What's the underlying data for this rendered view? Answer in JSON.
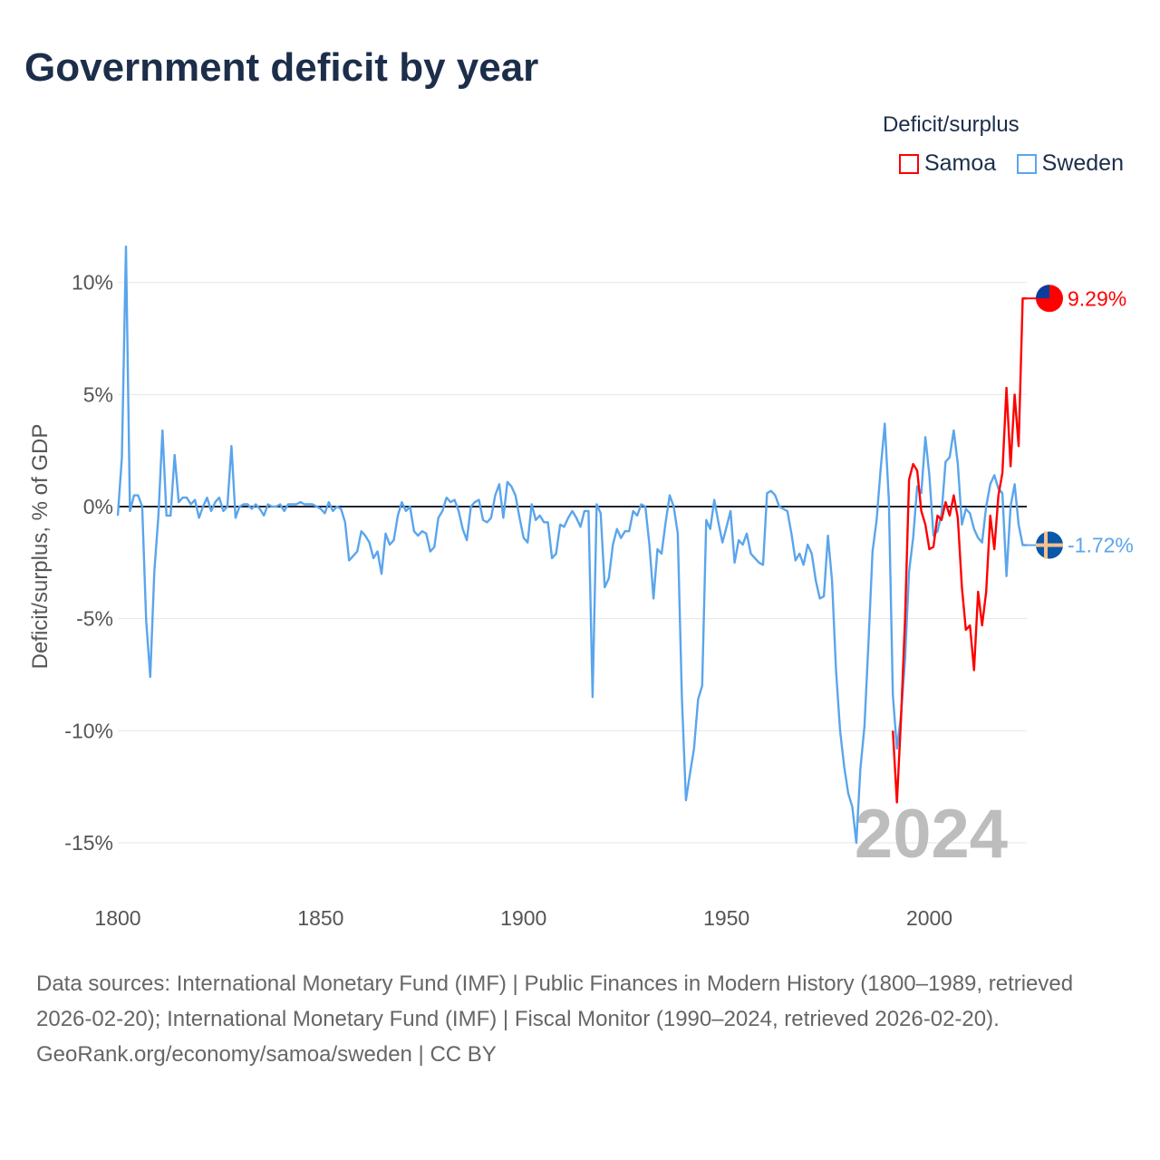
{
  "title": "Government deficit by year",
  "legend": {
    "title": "Deficit/surplus",
    "items": [
      {
        "name": "Samoa",
        "color": "#ff0000"
      },
      {
        "name": "Sweden",
        "color": "#5aa5ec"
      }
    ]
  },
  "footer": {
    "sources": "Data sources: International Monetary Fund (IMF) | Public Finances in Modern History (1800–1989, retrieved 2026-02-20); International Monetary Fund (IMF) | Fiscal Monitor (1990–2024, retrieved 2026-02-20).",
    "link": "GeoRank.org/economy/samoa/sweden | CC BY"
  },
  "chart_data": {
    "type": "line",
    "title": "Government deficit by year",
    "ylabel": "Deficit/surplus, % of GDP",
    "xlabel": "",
    "xlim": [
      1800,
      2024
    ],
    "ylim": [
      -16,
      12
    ],
    "xticks": [
      1800,
      1850,
      1900,
      1950,
      2000
    ],
    "yticks": [
      10,
      5,
      0,
      -5,
      -10,
      -15
    ],
    "ytick_labels": [
      "10%",
      "5%",
      "0%",
      "-5%",
      "-10%",
      "-15%"
    ],
    "year_watermark": "2024",
    "end_labels": {
      "Samoa": "9.29%",
      "Sweden": "-1.72%"
    },
    "series": [
      {
        "name": "Sweden",
        "color": "#5aa5ec",
        "points": [
          [
            1800,
            -0.4
          ],
          [
            1801,
            2.2
          ],
          [
            1802,
            11.6
          ],
          [
            1803,
            -0.2
          ],
          [
            1804,
            0.5
          ],
          [
            1805,
            0.5
          ],
          [
            1806,
            0
          ],
          [
            1807,
            -5.1
          ],
          [
            1808,
            -7.6
          ],
          [
            1809,
            -2.9
          ],
          [
            1810,
            -0.4
          ],
          [
            1811,
            3.4
          ],
          [
            1812,
            -0.4
          ],
          [
            1813,
            -0.4
          ],
          [
            1814,
            2.3
          ],
          [
            1815,
            0.2
          ],
          [
            1816,
            0.4
          ],
          [
            1817,
            0.4
          ],
          [
            1818,
            0.1
          ],
          [
            1819,
            0.3
          ],
          [
            1820,
            -0.5
          ],
          [
            1821,
            0
          ],
          [
            1822,
            0.4
          ],
          [
            1823,
            -0.2
          ],
          [
            1824,
            0.2
          ],
          [
            1825,
            0.4
          ],
          [
            1826,
            -0.2
          ],
          [
            1827,
            0
          ],
          [
            1828,
            2.7
          ],
          [
            1829,
            -0.5
          ],
          [
            1830,
            0
          ],
          [
            1831,
            0.1
          ],
          [
            1832,
            0.1
          ],
          [
            1833,
            -0.1
          ],
          [
            1834,
            0.1
          ],
          [
            1835,
            -0.1
          ],
          [
            1836,
            -0.4
          ],
          [
            1837,
            0.1
          ],
          [
            1838,
            0
          ],
          [
            1839,
            0
          ],
          [
            1840,
            0.1
          ],
          [
            1841,
            -0.2
          ],
          [
            1842,
            0.1
          ],
          [
            1843,
            0.1
          ],
          [
            1844,
            0.1
          ],
          [
            1845,
            0.2
          ],
          [
            1846,
            0.1
          ],
          [
            1847,
            0.1
          ],
          [
            1848,
            0.1
          ],
          [
            1849,
            0
          ],
          [
            1850,
            -0.1
          ],
          [
            1851,
            -0.3
          ],
          [
            1852,
            0.2
          ],
          [
            1853,
            -0.2
          ],
          [
            1854,
            0
          ],
          [
            1855,
            -0.1
          ],
          [
            1856,
            -0.7
          ],
          [
            1857,
            -2.4
          ],
          [
            1858,
            -2.2
          ],
          [
            1859,
            -2.0
          ],
          [
            1860,
            -1.1
          ],
          [
            1861,
            -1.3
          ],
          [
            1862,
            -1.6
          ],
          [
            1863,
            -2.3
          ],
          [
            1864,
            -2.0
          ],
          [
            1865,
            -3.0
          ],
          [
            1866,
            -1.2
          ],
          [
            1867,
            -1.7
          ],
          [
            1868,
            -1.5
          ],
          [
            1869,
            -0.4
          ],
          [
            1870,
            0.2
          ],
          [
            1871,
            -0.2
          ],
          [
            1872,
            0
          ],
          [
            1873,
            -1.1
          ],
          [
            1874,
            -1.3
          ],
          [
            1875,
            -1.1
          ],
          [
            1876,
            -1.2
          ],
          [
            1877,
            -2.0
          ],
          [
            1878,
            -1.8
          ],
          [
            1879,
            -0.5
          ],
          [
            1880,
            -0.2
          ],
          [
            1881,
            0.4
          ],
          [
            1882,
            0.2
          ],
          [
            1883,
            0.3
          ],
          [
            1884,
            -0.2
          ],
          [
            1885,
            -1.0
          ],
          [
            1886,
            -1.5
          ],
          [
            1887,
            0
          ],
          [
            1888,
            0.2
          ],
          [
            1889,
            0.3
          ],
          [
            1890,
            -0.6
          ],
          [
            1891,
            -0.7
          ],
          [
            1892,
            -0.5
          ],
          [
            1893,
            0.5
          ],
          [
            1894,
            1.0
          ],
          [
            1895,
            -0.5
          ],
          [
            1896,
            1.1
          ],
          [
            1897,
            0.9
          ],
          [
            1898,
            0.5
          ],
          [
            1899,
            -0.5
          ],
          [
            1900,
            -1.4
          ],
          [
            1901,
            -1.6
          ],
          [
            1902,
            0.1
          ],
          [
            1903,
            -0.6
          ],
          [
            1904,
            -0.4
          ],
          [
            1905,
            -0.7
          ],
          [
            1906,
            -0.7
          ],
          [
            1907,
            -2.3
          ],
          [
            1908,
            -2.1
          ],
          [
            1909,
            -0.8
          ],
          [
            1910,
            -0.9
          ],
          [
            1911,
            -0.5
          ],
          [
            1912,
            -0.2
          ],
          [
            1913,
            -0.5
          ],
          [
            1914,
            -0.9
          ],
          [
            1915,
            -0.2
          ],
          [
            1916,
            -0.2
          ],
          [
            1917,
            -8.5
          ],
          [
            1918,
            0.1
          ],
          [
            1919,
            -0.3
          ],
          [
            1920,
            -3.6
          ],
          [
            1921,
            -3.2
          ],
          [
            1922,
            -1.7
          ],
          [
            1923,
            -1.0
          ],
          [
            1924,
            -1.4
          ],
          [
            1925,
            -1.1
          ],
          [
            1926,
            -1.1
          ],
          [
            1927,
            -0.2
          ],
          [
            1928,
            -0.4
          ],
          [
            1929,
            0.1
          ],
          [
            1930,
            0
          ],
          [
            1931,
            -1.7
          ],
          [
            1932,
            -4.1
          ],
          [
            1933,
            -1.9
          ],
          [
            1934,
            -2.1
          ],
          [
            1935,
            -0.7
          ],
          [
            1936,
            0.5
          ],
          [
            1937,
            0
          ],
          [
            1938,
            -1.2
          ],
          [
            1939,
            -8.5
          ],
          [
            1940,
            -13.1
          ],
          [
            1941,
            -11.9
          ],
          [
            1942,
            -10.8
          ],
          [
            1943,
            -8.6
          ],
          [
            1944,
            -8.0
          ],
          [
            1945,
            -0.6
          ],
          [
            1946,
            -1.0
          ],
          [
            1947,
            0.3
          ],
          [
            1948,
            -0.7
          ],
          [
            1949,
            -1.6
          ],
          [
            1950,
            -0.9
          ],
          [
            1951,
            -0.2
          ],
          [
            1952,
            -2.5
          ],
          [
            1953,
            -1.5
          ],
          [
            1954,
            -1.7
          ],
          [
            1955,
            -1.2
          ],
          [
            1956,
            -2.1
          ],
          [
            1957,
            -2.3
          ],
          [
            1958,
            -2.5
          ],
          [
            1959,
            -2.6
          ],
          [
            1960,
            0.6
          ],
          [
            1961,
            0.7
          ],
          [
            1962,
            0.5
          ],
          [
            1963,
            0
          ],
          [
            1964,
            -0.1
          ],
          [
            1965,
            -0.2
          ],
          [
            1966,
            -1.2
          ],
          [
            1967,
            -2.4
          ],
          [
            1968,
            -2.1
          ],
          [
            1969,
            -2.6
          ],
          [
            1970,
            -1.7
          ],
          [
            1971,
            -2.1
          ],
          [
            1972,
            -3.3
          ],
          [
            1973,
            -4.1
          ],
          [
            1974,
            -4.0
          ],
          [
            1975,
            -1.3
          ],
          [
            1976,
            -3.3
          ],
          [
            1977,
            -7.3
          ],
          [
            1978,
            -10.0
          ],
          [
            1979,
            -11.6
          ],
          [
            1980,
            -12.8
          ],
          [
            1981,
            -13.4
          ],
          [
            1982,
            -15.0
          ],
          [
            1983,
            -11.7
          ],
          [
            1984,
            -9.8
          ],
          [
            1985,
            -6.0
          ],
          [
            1986,
            -2.0
          ],
          [
            1987,
            -0.6
          ],
          [
            1988,
            1.7
          ],
          [
            1989,
            3.7
          ],
          [
            1990,
            0.3
          ],
          [
            1991,
            -8.4
          ],
          [
            1992,
            -10.8
          ],
          [
            1993,
            -9.3
          ],
          [
            1994,
            -6.8
          ],
          [
            1995,
            -2.9
          ],
          [
            1996,
            -1.4
          ],
          [
            1997,
            0.9
          ],
          [
            1998,
            0.6
          ],
          [
            1999,
            3.1
          ],
          [
            2000,
            1.4
          ],
          [
            2001,
            -1.3
          ],
          [
            2002,
            -1.1
          ],
          [
            2003,
            -0.3
          ],
          [
            2004,
            2.0
          ],
          [
            2005,
            2.2
          ],
          [
            2006,
            3.4
          ],
          [
            2007,
            1.9
          ],
          [
            2008,
            -0.8
          ],
          [
            2009,
            -0.1
          ],
          [
            2010,
            -0.3
          ],
          [
            2011,
            -1.0
          ],
          [
            2012,
            -1.4
          ],
          [
            2013,
            -1.6
          ],
          [
            2014,
            0
          ],
          [
            2015,
            1.0
          ],
          [
            2016,
            1.4
          ],
          [
            2017,
            0.8
          ],
          [
            2018,
            0.6
          ],
          [
            2019,
            -3.1
          ],
          [
            2020,
            0
          ],
          [
            2021,
            1.0
          ],
          [
            2022,
            -0.8
          ],
          [
            2023,
            -1.72
          ],
          [
            2024,
            -1.72
          ]
        ]
      },
      {
        "name": "Samoa",
        "color": "#ff0000",
        "points": [
          [
            1991,
            -10.0
          ],
          [
            1992,
            -13.2
          ],
          [
            1993,
            -9.5
          ],
          [
            1994,
            -5.0
          ],
          [
            1995,
            1.2
          ],
          [
            1996,
            1.9
          ],
          [
            1997,
            1.6
          ],
          [
            1998,
            -0.2
          ],
          [
            1999,
            -0.8
          ],
          [
            2000,
            -1.9
          ],
          [
            2001,
            -1.8
          ],
          [
            2002,
            -0.4
          ],
          [
            2003,
            -0.6
          ],
          [
            2004,
            0.2
          ],
          [
            2005,
            -0.4
          ],
          [
            2006,
            0.5
          ],
          [
            2007,
            -0.5
          ],
          [
            2008,
            -3.6
          ],
          [
            2009,
            -5.5
          ],
          [
            2010,
            -5.3
          ],
          [
            2011,
            -7.3
          ],
          [
            2012,
            -3.8
          ],
          [
            2013,
            -5.3
          ],
          [
            2014,
            -3.8
          ],
          [
            2015,
            -0.4
          ],
          [
            2016,
            -1.9
          ],
          [
            2017,
            0.5
          ],
          [
            2018,
            1.5
          ],
          [
            2019,
            5.3
          ],
          [
            2020,
            1.8
          ],
          [
            2021,
            5.0
          ],
          [
            2022,
            2.7
          ],
          [
            2023,
            9.29
          ],
          [
            2024,
            9.29
          ]
        ]
      }
    ]
  }
}
